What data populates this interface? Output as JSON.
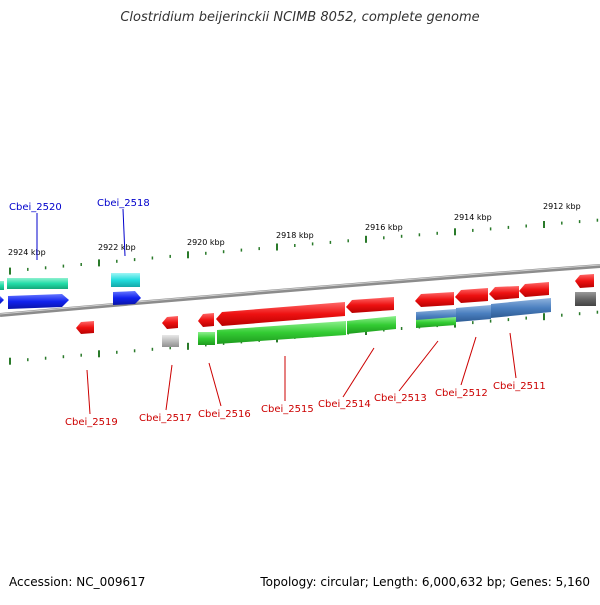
{
  "title": "Clostridium beijerinckii NCIMB 8052, complete genome",
  "footer": {
    "accession": "Accession: NC_009617",
    "summary": "Topology: circular; Length: 6,000,632 bp; Genes: 5,160"
  },
  "scale_labels": [
    "2924 kbp",
    "2922 kbp",
    "2920 kbp",
    "2918 kbp",
    "2916 kbp",
    "2914 kbp",
    "2912 kbp"
  ],
  "gene_labels_top": [
    "Cbei_2520",
    "Cbei_2518"
  ],
  "gene_labels_bottom": [
    "Cbei_2519",
    "Cbei_2517",
    "Cbei_2516",
    "Cbei_2515",
    "Cbei_2514",
    "Cbei_2513",
    "Cbei_2512",
    "Cbei_2511"
  ],
  "colors": {
    "backbone": "#8c8c8c",
    "gene_red": "#ee1111",
    "gene_green": "#33cc33",
    "gene_blue": "#1122ee",
    "gene_cyan": "#22dddd",
    "gene_teal": "#22ddaa",
    "gene_steelblue": "#4a7fbf",
    "gene_gray": "#bbbbbb",
    "gene_darkgray": "#666666",
    "tick_green": "#2a7a2a",
    "label_blue": "#0000cc",
    "label_red": "#cc0000"
  }
}
